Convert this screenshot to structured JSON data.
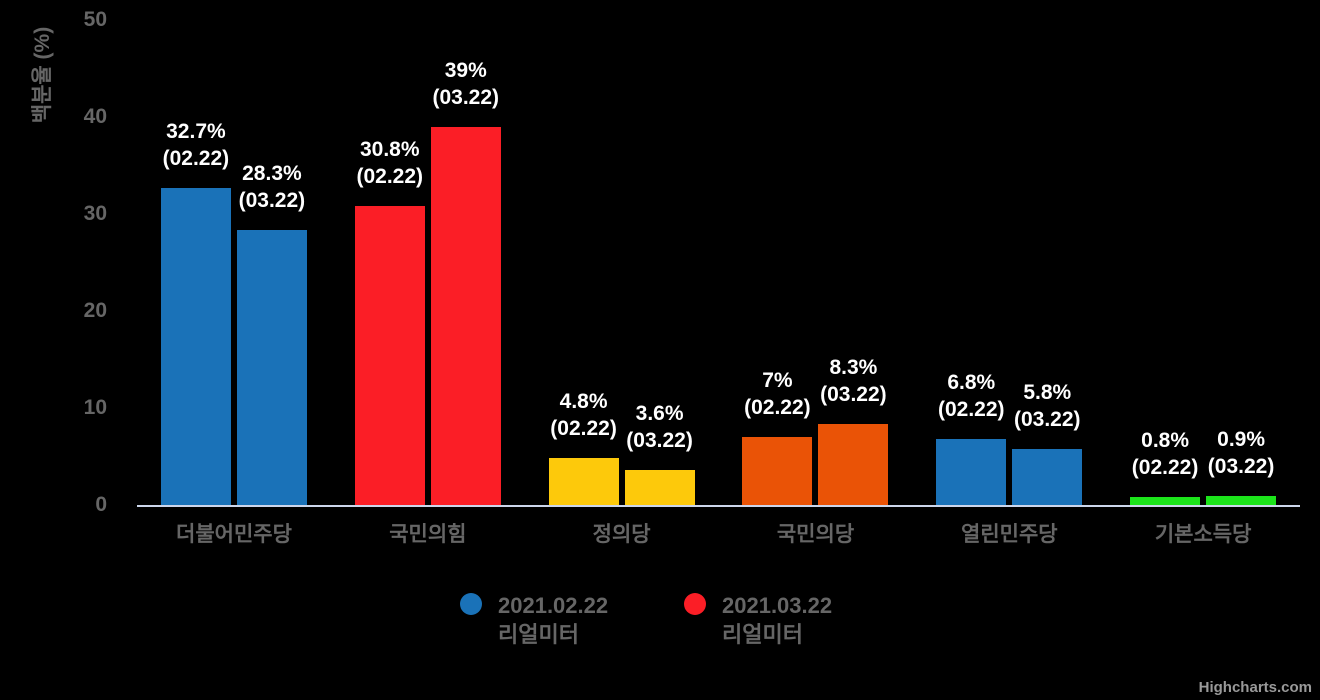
{
  "chart_data": {
    "type": "bar",
    "title": "",
    "categories": [
      "더불어민주당",
      "국민의힘",
      "정의당",
      "국민의당",
      "열린민주당",
      "기본소득당"
    ],
    "series": [
      {
        "name_line1": "2021.02.22",
        "name_line2": "리얼미터",
        "legend_color": "#1a72b8",
        "suffix": "(02.22)",
        "values": [
          32.7,
          30.8,
          4.8,
          7,
          6.8,
          0.8
        ],
        "labels": [
          "32.7%",
          "30.8%",
          "4.8%",
          "7%",
          "6.8%",
          "0.8%"
        ]
      },
      {
        "name_line1": "2021.03.22",
        "name_line2": "리얼미터",
        "legend_color": "#fb1e26",
        "suffix": "(03.22)",
        "values": [
          28.3,
          39,
          3.6,
          8.3,
          5.8,
          0.9
        ],
        "labels": [
          "28.3%",
          "39%",
          "3.6%",
          "8.3%",
          "5.8%",
          "0.9%"
        ]
      }
    ],
    "category_colors": [
      "#1a72b8",
      "#fb1e26",
      "#fdc90b",
      "#ea5306",
      "#1a72b8",
      "#1ce41b"
    ],
    "xlabel": "",
    "ylabel": "백분율 (%)",
    "ylim": [
      0,
      50
    ],
    "yticks": [
      0,
      10,
      20,
      30,
      40,
      50
    ],
    "grid": "off",
    "legend_position": "bottom-center"
  },
  "credits": {
    "label": "Highcharts.com"
  },
  "colors": {
    "background": "#000000",
    "axis_line": "#ccd6eb",
    "tick_text": "#666666",
    "data_label_text": "#ffffff",
    "credits_text": "#999999"
  }
}
